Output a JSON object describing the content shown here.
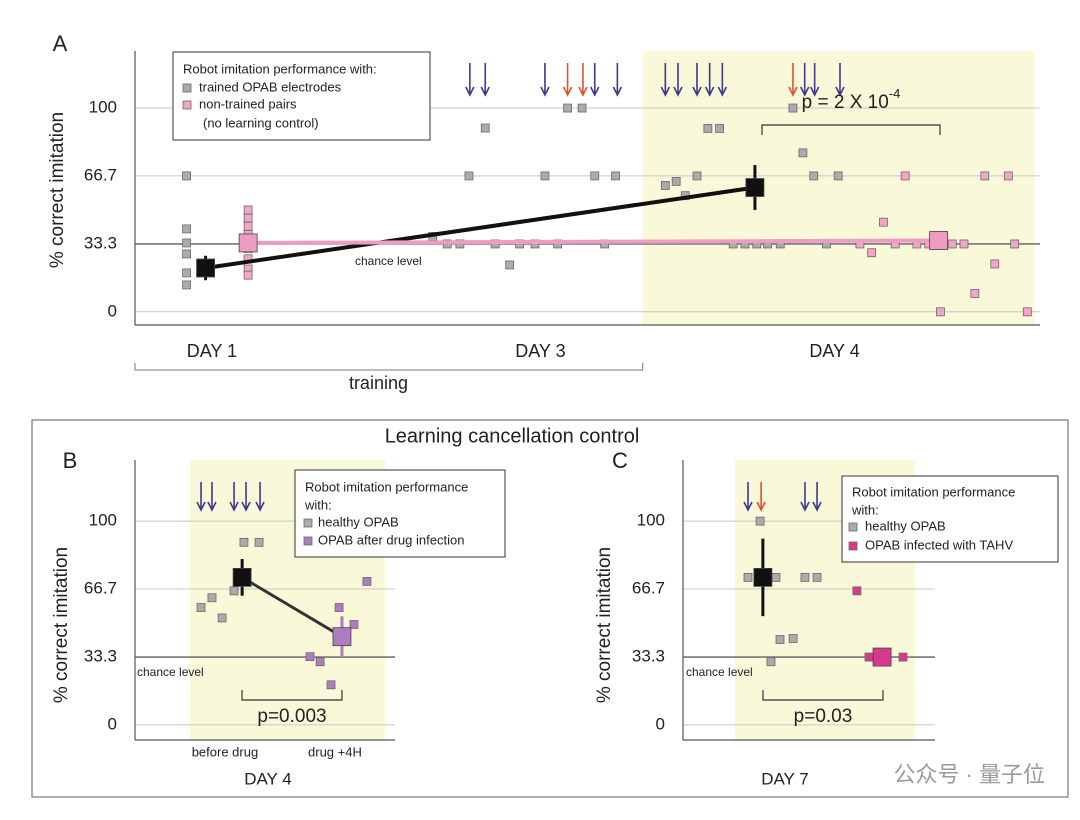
{
  "figure": {
    "title": "Learning cancellation control",
    "watermark": "公众号 · 量子位"
  },
  "chart_data": [
    {
      "type": "scatter",
      "panel": "A",
      "ylabel": "% correct  imitation",
      "xlim": [
        0,
        100
      ],
      "ylim": [
        -5,
        128
      ],
      "yticks": [
        0,
        33.3,
        66.7,
        100
      ],
      "grid": true,
      "xticks": [
        {
          "value": 8.5,
          "label": "DAY 1"
        },
        {
          "value": 44.8,
          "label": "DAY 3"
        },
        {
          "value": 77.3,
          "label": "DAY 4"
        }
      ],
      "span_label": "training",
      "shade": [
        56.1,
        99.4
      ],
      "reference": {
        "value": 33.3,
        "label": "chance level"
      },
      "legend_title": [
        "Robot imitation performance with:"
      ],
      "legend_note": "(no learning control)",
      "series": [
        {
          "name": "trained OPAB electrodes",
          "color": "#ababab",
          "x": [
            5.7,
            5.7,
            5.7,
            5.7,
            5.7,
            5.7,
            38.7,
            36.9,
            32.9,
            34.5,
            35.9,
            39.8,
            41.4,
            42.5,
            44.2,
            45.3,
            46.7,
            47.8,
            49.4,
            50.8,
            51.9,
            53.1,
            58.6,
            59.8,
            60.8,
            62.1,
            63.3,
            64.6,
            66.1,
            67.4,
            68.7,
            69.9,
            71.3,
            72.7,
            73.8,
            75.0,
            76.4,
            77.7
          ],
          "values": [
            66.7,
            40.7,
            33.8,
            28.4,
            19.1,
            13.2,
            90.2,
            66.7,
            37,
            33.3,
            33.3,
            33.3,
            23,
            33.3,
            33.3,
            66.7,
            33.3,
            100,
            100,
            66.7,
            33.3,
            66.7,
            62,
            64,
            57,
            66.7,
            90,
            90,
            33.3,
            33.3,
            33.3,
            33.3,
            33.3,
            100,
            78,
            66.7,
            33.3,
            66.7
          ]
        },
        {
          "name": "non-trained pairs",
          "color": "#f2a6c6",
          "x": [
            12.5,
            12.5,
            12.5,
            12.5,
            12.5,
            12.5,
            12.5,
            12.5,
            80.1,
            81.4,
            82.7,
            84.0,
            85.1,
            86.4,
            87.7,
            89.0,
            90.3,
            91.6,
            92.8,
            93.9,
            95.0,
            96.5,
            97.2,
            98.6
          ],
          "values": [
            50,
            46,
            42,
            38,
            31,
            26,
            21,
            18,
            33.3,
            29,
            44,
            33.3,
            66.7,
            33.3,
            33.3,
            0,
            33.3,
            33.3,
            9,
            66.7,
            23.5,
            66.7,
            33.3,
            0
          ]
        }
      ],
      "means": [
        {
          "color": "#111111",
          "x": [
            7.8,
            68.5
          ],
          "values": [
            21.5,
            61
          ],
          "errors": [
            6,
            11
          ]
        },
        {
          "color": "#ef9cc2",
          "x": [
            12.5,
            88.8
          ],
          "values": [
            33.8,
            35
          ],
          "errors": [
            5,
            4
          ]
        }
      ],
      "arrows": {
        "x": [
          37.0,
          38.7,
          45.3,
          47.8,
          49.5,
          50.8,
          53.3,
          58.6,
          60.0,
          62.1,
          63.5,
          64.9,
          72.7,
          74.0,
          75.1,
          77.9
        ],
        "colors": [
          "#3b3b8f",
          "#3b3b8f",
          "#3b3b8f",
          "#e0522c",
          "#e0522c",
          "#3b3b8f",
          "#3b3b8f",
          "#3b3b8f",
          "#3b3b8f",
          "#3b3b8f",
          "#3b3b8f",
          "#3b3b8f",
          "#e0522c",
          "#3b3b8f",
          "#3b3b8f",
          "#3b3b8f"
        ]
      },
      "p_value": "p = 2 X 10",
      "p_exponent": "-4"
    },
    {
      "type": "scatter",
      "panel": "B",
      "ylabel": "% correct  imitation",
      "xlim": [
        0,
        100
      ],
      "ylim": [
        -7.4,
        130
      ],
      "yticks": [
        0,
        33.3,
        66.7,
        100
      ],
      "grid": true,
      "xticks": [
        {
          "value": 34.6,
          "label": "before drug"
        },
        {
          "value": 76.9,
          "label": "drug +4H"
        }
      ],
      "xlabel": "DAY 4",
      "shade": [
        21.2,
        96.2
      ],
      "reference": {
        "value": 33.3,
        "label": "chance level"
      },
      "legend_title": [
        "Robot imitation performance",
        "with:"
      ],
      "series": [
        {
          "name": "healthy OPAB",
          "color": "#ababab",
          "x": [
            25.4,
            29.6,
            33.5,
            38.1,
            41.9,
            47.7
          ],
          "values": [
            57.6,
            62.4,
            52.5,
            65.8,
            89.6,
            89.6
          ]
        },
        {
          "name": "OPAB after drug infection",
          "color": "#b07cc0",
          "x": [
            67.3,
            71.2,
            75.4,
            78.5,
            84.2,
            89.2
          ],
          "values": [
            33.5,
            31,
            19.7,
            57.6,
            49.3,
            70.4
          ]
        }
      ],
      "means": [
        {
          "color": "#333333",
          "point_colors": [
            "#111111",
            "#b07cc0"
          ],
          "x": [
            41.2,
            79.6
          ],
          "values": [
            72.4,
            43.3
          ],
          "errors": [
            9,
            10
          ]
        }
      ],
      "arrows": {
        "x": [
          25.4,
          29.6,
          38.1,
          42.7,
          48.1
        ],
        "colors": [
          "#3b3b8f",
          "#3b3b8f",
          "#3b3b8f",
          "#3b3b8f",
          "#3b3b8f"
        ]
      },
      "p_value": "p=0.003"
    },
    {
      "type": "scatter",
      "panel": "C",
      "ylabel": "% correct  imitation",
      "xlim": [
        0,
        100
      ],
      "ylim": [
        -7.4,
        130
      ],
      "yticks": [
        0,
        33.3,
        66.7,
        100
      ],
      "grid": true,
      "xlabel": "DAY 7",
      "shade": [
        20.6,
        92.1
      ],
      "reference": {
        "value": 33.3,
        "label": "chance level"
      },
      "legend_title": [
        "Robot imitation performance",
        "with:"
      ],
      "series": [
        {
          "name": "healthy OPAB",
          "color": "#ababab",
          "x": [
            30.6,
            25.8,
            36.9,
            48.4,
            53.2,
            38.5,
            43.7,
            34.9
          ],
          "values": [
            100,
            72.4,
            72.4,
            72.4,
            72.4,
            41.9,
            42.4,
            31
          ]
        },
        {
          "name": "OPAB infected with TAHV",
          "color": "#d63a8c",
          "x": [
            69.0,
            73.8,
            87.3
          ],
          "values": [
            65.8,
            33.3,
            33.3
          ]
        }
      ],
      "means": [
        {
          "color": "#111111",
          "x": [
            31.7
          ],
          "values": [
            72.4
          ],
          "errors": [
            19
          ]
        },
        {
          "color": "#d63a8c",
          "x": [
            79
          ],
          "values": [
            33.3
          ],
          "errors": [
            4
          ]
        }
      ],
      "arrows": {
        "x": [
          25.8,
          31.0,
          48.4,
          53.2
        ],
        "colors": [
          "#3b3b8f",
          "#e0522c",
          "#3b3b8f",
          "#3b3b8f"
        ]
      },
      "p_value": "p=0.03"
    }
  ]
}
